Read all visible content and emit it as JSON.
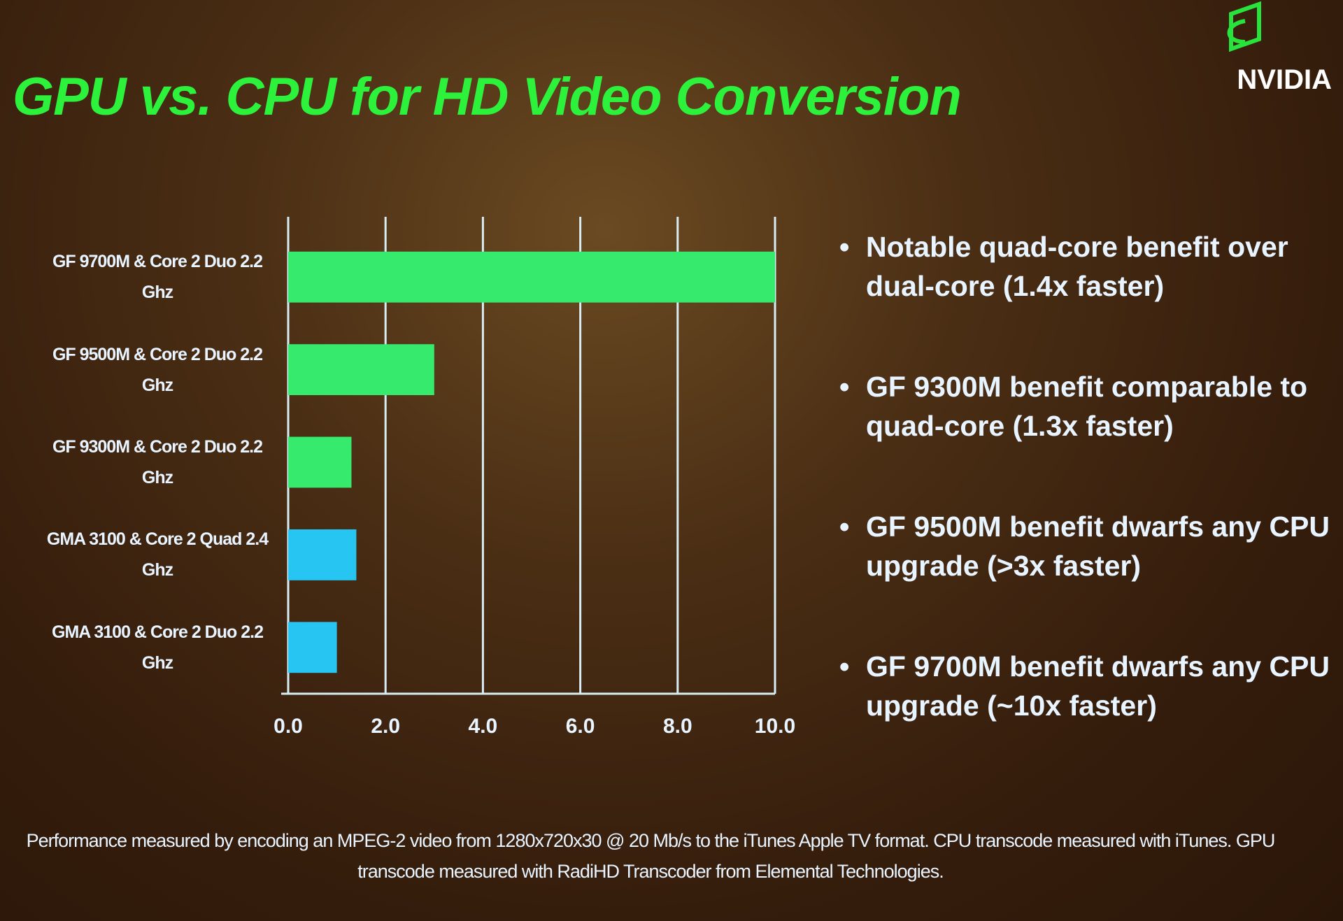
{
  "title": "GPU vs. CPU for HD Video Conversion",
  "logo": "NVIDIA",
  "chart_data": {
    "type": "bar",
    "orientation": "horizontal",
    "categories": [
      "GF 9700M & Core 2 Duo 2.2 Ghz",
      "GF 9500M & Core 2 Duo 2.2 Ghz",
      "GF 9300M & Core 2 Duo 2.2 Ghz",
      "GMA 3100 & Core 2 Quad 2.4 Ghz",
      "GMA 3100 & Core 2 Duo 2.2 Ghz"
    ],
    "values": [
      10.0,
      3.0,
      1.3,
      1.4,
      1.0
    ],
    "colors": [
      "#35ea6c",
      "#35ea6c",
      "#35ea6c",
      "#27c6f2",
      "#27c6f2"
    ],
    "xlim": [
      0,
      10
    ],
    "xticks": [
      {
        "value": 0,
        "label": "0.0"
      },
      {
        "value": 2,
        "label": "2.0"
      },
      {
        "value": 4,
        "label": "4.0"
      },
      {
        "value": 6,
        "label": "6.0"
      },
      {
        "value": 8,
        "label": "8.0"
      },
      {
        "value": 10,
        "label": "10.0"
      }
    ],
    "grid": true
  },
  "bullets": [
    "Notable quad-core benefit over dual-core (1.4x faster)",
    "GF 9300M benefit comparable to quad-core (1.3x faster)",
    "GF 9500M benefit dwarfs any CPU upgrade (>3x faster)",
    "GF 9700M benefit dwarfs any CPU upgrade (~10x faster)"
  ],
  "footnote": "Performance measured by encoding an MPEG-2 video from 1280x720x30 @ 20 Mb/s to the iTunes Apple TV format. CPU transcode measured with iTunes. GPU transcode measured with RadiHD Transcoder from Elemental Technologies."
}
